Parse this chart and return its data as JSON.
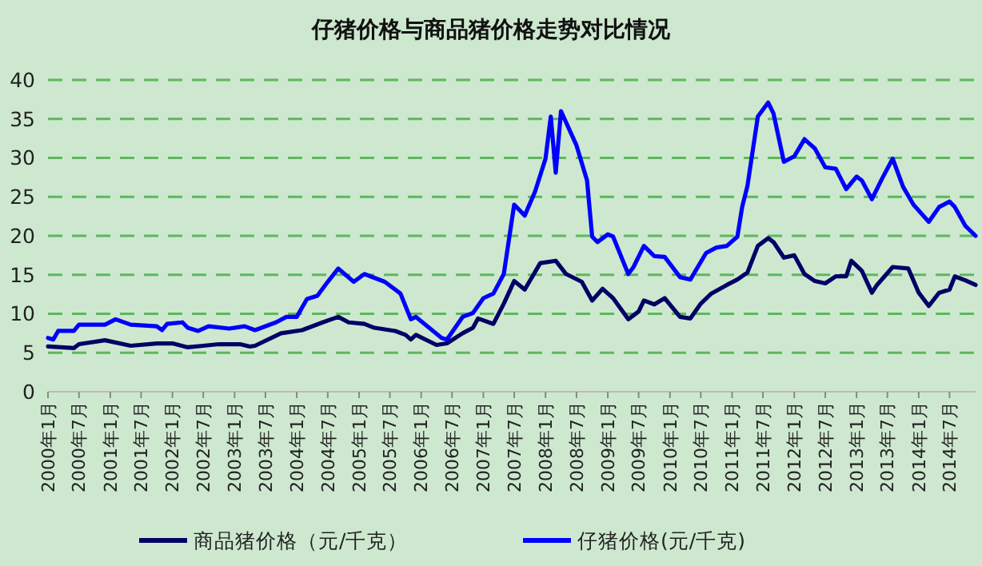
{
  "chart_data": {
    "type": "line",
    "title": "仔猪价格与商品猪价格走势对比情况",
    "xlim": [
      "2000-01",
      "2014-12"
    ],
    "xticks": [
      {
        "value": "2000-01",
        "label": "2000年1月"
      },
      {
        "value": "2000-07",
        "label": "2000年7月"
      },
      {
        "value": "2001-01",
        "label": "2001年1月"
      },
      {
        "value": "2001-07",
        "label": "2001年7月"
      },
      {
        "value": "2002-01",
        "label": "2002年1月"
      },
      {
        "value": "2002-07",
        "label": "2002年7月"
      },
      {
        "value": "2003-01",
        "label": "2003年1月"
      },
      {
        "value": "2003-07",
        "label": "2003年7月"
      },
      {
        "value": "2004-01",
        "label": "2004年1月"
      },
      {
        "value": "2004-07",
        "label": "2004年7月"
      },
      {
        "value": "2005-01",
        "label": "2005年1月"
      },
      {
        "value": "2005-07",
        "label": "2005年7月"
      },
      {
        "value": "2006-01",
        "label": "2006年1月"
      },
      {
        "value": "2006-07",
        "label": "2006年7月"
      },
      {
        "value": "2007-01",
        "label": "2007年1月"
      },
      {
        "value": "2007-07",
        "label": "2007年7月"
      },
      {
        "value": "2008-01",
        "label": "2008年1月"
      },
      {
        "value": "2008-07",
        "label": "2008年7月"
      },
      {
        "value": "2009-01",
        "label": "2009年1月"
      },
      {
        "value": "2009-07",
        "label": "2009年7月"
      },
      {
        "value": "2010-01",
        "label": "2010年1月"
      },
      {
        "value": "2010-07",
        "label": "2010年7月"
      },
      {
        "value": "2011-01",
        "label": "2011年1月"
      },
      {
        "value": "2011-07",
        "label": "2011年7月"
      },
      {
        "value": "2012-01",
        "label": "2012年1月"
      },
      {
        "value": "2012-07",
        "label": "2012年7月"
      },
      {
        "value": "2013-01",
        "label": "2013年1月"
      },
      {
        "value": "2013-07",
        "label": "2013年7月"
      },
      {
        "value": "2014-01",
        "label": "2014年1月"
      },
      {
        "value": "2014-07",
        "label": "2014年7月"
      }
    ],
    "ylim": [
      0,
      40
    ],
    "yticks": [
      0,
      5,
      10,
      15,
      20,
      25,
      30,
      35,
      40
    ],
    "grid": "y",
    "legend": "bottom",
    "line_style": "solid",
    "marker": "none",
    "series": [
      {
        "name": "商品猪价格（元/千克）",
        "color": "#000066",
        "x": [
          "2000-01",
          "2000-06",
          "2000-07",
          "2000-12",
          "2001-05",
          "2001-10",
          "2002-01",
          "2002-04",
          "2002-07",
          "2002-10",
          "2003-02",
          "2003-04",
          "2003-05",
          "2003-10",
          "2004-02",
          "2004-06",
          "2004-09",
          "2004-11",
          "2005-02",
          "2005-04",
          "2005-08",
          "2005-10",
          "2005-11",
          "2005-12",
          "2006-04",
          "2006-06",
          "2006-09",
          "2006-11",
          "2006-12",
          "2007-03",
          "2007-05",
          "2007-07",
          "2007-09",
          "2007-12",
          "2008-03",
          "2008-05",
          "2008-08",
          "2008-10",
          "2008-12",
          "2009-02",
          "2009-05",
          "2009-07",
          "2009-08",
          "2009-10",
          "2009-12",
          "2010-03",
          "2010-05",
          "2010-07",
          "2010-09",
          "2010-12",
          "2011-02",
          "2011-04",
          "2011-06",
          "2011-08",
          "2011-09",
          "2011-11",
          "2012-01",
          "2012-03",
          "2012-05",
          "2012-07",
          "2012-09",
          "2012-11",
          "2012-12",
          "2013-02",
          "2013-04",
          "2013-05",
          "2013-08",
          "2013-11",
          "2014-01",
          "2014-03",
          "2014-05",
          "2014-07",
          "2014-08",
          "2014-10",
          "2014-12"
        ],
        "values": [
          5.8,
          5.6,
          6.1,
          6.6,
          5.9,
          6.2,
          6.2,
          5.7,
          5.9,
          6.1,
          6.1,
          5.8,
          5.9,
          7.5,
          7.9,
          8.9,
          9.6,
          8.9,
          8.7,
          8.2,
          7.8,
          7.3,
          6.7,
          7.3,
          6.0,
          6.2,
          7.5,
          8.2,
          9.4,
          8.7,
          11.3,
          14.2,
          13.1,
          16.5,
          16.8,
          15.1,
          14.1,
          11.7,
          13.2,
          12.0,
          9.3,
          10.3,
          11.7,
          11.2,
          12.0,
          9.6,
          9.4,
          11.3,
          12.6,
          13.7,
          14.4,
          15.3,
          18.7,
          19.7,
          19.2,
          17.2,
          17.5,
          15.1,
          14.2,
          13.9,
          14.8,
          14.8,
          16.8,
          15.5,
          12.7,
          13.7,
          16.0,
          15.8,
          12.7,
          11.0,
          12.7,
          13.1,
          14.8,
          14.3,
          13.7
        ]
      },
      {
        "name": "仔猪价格(元/千克)",
        "color": "#0000ff",
        "x": [
          "2000-01",
          "2000-02",
          "2000-03",
          "2000-06",
          "2000-07",
          "2000-12",
          "2001-02",
          "2001-05",
          "2001-10",
          "2001-11",
          "2001-12",
          "2002-03",
          "2002-04",
          "2002-06",
          "2002-08",
          "2002-12",
          "2003-03",
          "2003-05",
          "2003-09",
          "2003-11",
          "2004-01",
          "2004-03",
          "2004-05",
          "2004-07",
          "2004-09",
          "2004-12",
          "2005-02",
          "2005-06",
          "2005-09",
          "2005-11",
          "2005-12",
          "2006-05",
          "2006-06",
          "2006-09",
          "2006-11",
          "2007-01",
          "2007-03",
          "2007-05",
          "2007-07",
          "2007-09",
          "2007-11",
          "2008-01",
          "2008-02",
          "2008-03",
          "2008-04",
          "2008-07",
          "2008-09",
          "2008-10",
          "2008-11",
          "2009-01",
          "2009-02",
          "2009-05",
          "2009-06",
          "2009-08",
          "2009-10",
          "2009-12",
          "2010-03",
          "2010-05",
          "2010-08",
          "2010-10",
          "2010-12",
          "2011-02",
          "2011-03",
          "2011-04",
          "2011-06",
          "2011-08",
          "2011-09",
          "2011-11",
          "2012-01",
          "2012-03",
          "2012-05",
          "2012-07",
          "2012-09",
          "2012-11",
          "2013-01",
          "2013-02",
          "2013-04",
          "2013-06",
          "2013-08",
          "2013-10",
          "2013-12",
          "2014-03",
          "2014-05",
          "2014-07",
          "2014-08",
          "2014-10",
          "2014-12"
        ],
        "values": [
          6.9,
          6.7,
          7.8,
          7.8,
          8.6,
          8.6,
          9.3,
          8.6,
          8.4,
          7.9,
          8.7,
          8.9,
          8.2,
          7.8,
          8.4,
          8.1,
          8.4,
          7.9,
          8.9,
          9.6,
          9.6,
          11.9,
          12.3,
          14.1,
          15.8,
          14.1,
          15.1,
          14.1,
          12.6,
          9.3,
          9.6,
          6.9,
          6.7,
          9.6,
          10.1,
          12.0,
          12.6,
          15.1,
          24.0,
          22.6,
          25.7,
          29.9,
          35.3,
          28.1,
          36.0,
          31.6,
          27.1,
          19.9,
          19.2,
          20.2,
          19.9,
          15.1,
          16.0,
          18.7,
          17.4,
          17.3,
          14.7,
          14.4,
          17.8,
          18.5,
          18.7,
          19.9,
          23.7,
          26.4,
          35.3,
          37.1,
          35.7,
          29.5,
          30.2,
          32.4,
          31.2,
          28.8,
          28.6,
          26.0,
          27.6,
          27.1,
          24.7,
          27.4,
          29.9,
          26.3,
          24.0,
          21.8,
          23.7,
          24.4,
          23.7,
          21.3,
          20.0
        ]
      }
    ]
  }
}
